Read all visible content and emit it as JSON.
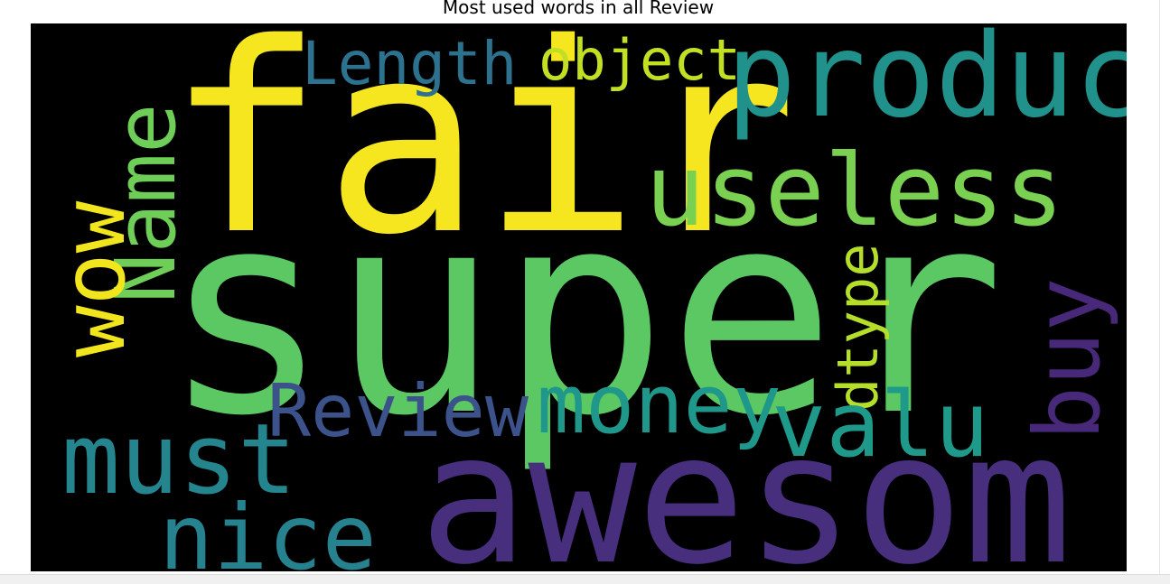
{
  "figure": {
    "title": "Most used words in all Review",
    "background_color": "#000000"
  },
  "words": [
    {
      "text": "fair",
      "color": "#f6e620",
      "rotated": false
    },
    {
      "text": "super",
      "color": "#5cc863",
      "rotated": false
    },
    {
      "text": "awesom",
      "color": "#472f7d",
      "rotated": false
    },
    {
      "text": "product",
      "color": "#21918c",
      "rotated": false
    },
    {
      "text": "useless",
      "color": "#7ad151",
      "rotated": false
    },
    {
      "text": "Length",
      "color": "#2c728e",
      "rotated": false
    },
    {
      "text": "object",
      "color": "#c2df23",
      "rotated": false
    },
    {
      "text": "Name",
      "color": "#6ece58",
      "rotated": true
    },
    {
      "text": "wow",
      "color": "#f1e51d",
      "rotated": true
    },
    {
      "text": "dtype",
      "color": "#b5de2b",
      "rotated": true
    },
    {
      "text": "buy",
      "color": "#482878",
      "rotated": true
    },
    {
      "text": "Review",
      "color": "#3b528b",
      "rotated": false
    },
    {
      "text": "money",
      "color": "#1f988b",
      "rotated": false
    },
    {
      "text": "valu",
      "color": "#1f9a8a",
      "rotated": false
    },
    {
      "text": "must",
      "color": "#25858e",
      "rotated": false
    },
    {
      "text": "nice",
      "color": "#26828e",
      "rotated": false
    }
  ]
}
